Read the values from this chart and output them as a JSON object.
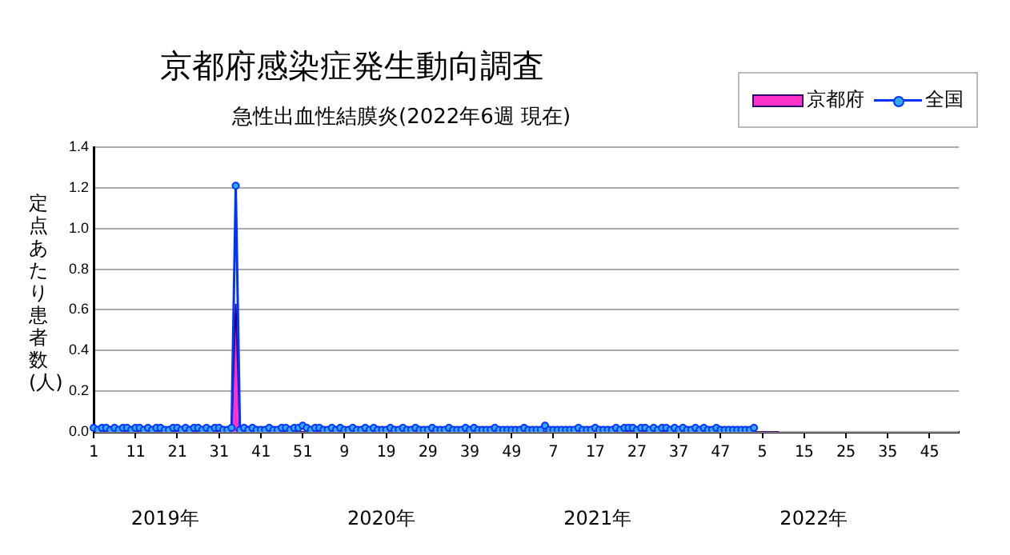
{
  "chart_data": {
    "type": "line",
    "title": "京都府感染症発生動向調査",
    "subtitle": "急性出血性結膜炎(2022年6週 現在)",
    "ylabel": "定点あたり患者数(人)",
    "annotations": [
      "2019年",
      "2020年",
      "2021年",
      "2022年"
    ],
    "categories": [
      "1",
      null,
      null,
      null,
      null,
      null,
      null,
      null,
      null,
      null,
      "11",
      null,
      null,
      null,
      null,
      null,
      null,
      null,
      null,
      null,
      "21",
      null,
      null,
      null,
      null,
      null,
      null,
      null,
      null,
      null,
      "31",
      null,
      null,
      null,
      null,
      null,
      null,
      null,
      null,
      null,
      "41",
      null,
      null,
      null,
      null,
      null,
      null,
      null,
      null,
      null,
      "51",
      null,
      null,
      null,
      null,
      null,
      null,
      null,
      null,
      null,
      "9",
      null,
      null,
      null,
      null,
      null,
      null,
      null,
      null,
      null,
      "19",
      null,
      null,
      null,
      null,
      null,
      null,
      null,
      null,
      null,
      "29",
      null,
      null,
      null,
      null,
      null,
      null,
      null,
      null,
      null,
      "39",
      null,
      null,
      null,
      null,
      null,
      null,
      null,
      null,
      null,
      "49",
      null,
      null,
      null,
      null,
      null,
      null,
      null,
      null,
      null,
      "7",
      null,
      null,
      null,
      null,
      null,
      null,
      null,
      null,
      null,
      "17",
      null,
      null,
      null,
      null,
      null,
      null,
      null,
      null,
      null,
      "27",
      null,
      null,
      null,
      null,
      null,
      null,
      null,
      null,
      null,
      "37",
      null,
      null,
      null,
      null,
      null,
      null,
      null,
      null,
      null,
      "47",
      null,
      null,
      null,
      null,
      null,
      null,
      null,
      null,
      null,
      "5",
      null,
      null,
      null,
      null,
      null,
      null,
      null,
      null,
      null,
      "15",
      null,
      null,
      null,
      null,
      null,
      null,
      null,
      null,
      null,
      "25",
      null,
      null,
      null,
      null,
      null,
      null,
      null,
      null,
      null,
      "35",
      null,
      null,
      null,
      null,
      null,
      null,
      null,
      null,
      null,
      "45",
      null,
      null,
      null,
      null,
      null,
      null,
      null
    ],
    "series": [
      {
        "name": "京都府",
        "type": "area",
        "color": "#ff33cc",
        "marker": "none",
        "values": [
          0,
          0,
          0,
          0,
          0,
          0,
          0,
          0,
          0,
          0,
          0,
          0,
          0,
          0,
          0,
          0,
          0,
          0,
          0,
          0,
          0,
          0,
          0,
          0,
          0,
          0,
          0,
          0,
          0,
          0,
          0,
          0,
          0,
          0,
          0.63,
          0,
          0,
          0,
          0,
          0,
          0,
          0,
          0,
          0,
          0,
          0,
          0,
          0,
          0,
          0,
          0,
          0,
          0,
          0,
          0,
          0,
          0,
          0,
          0,
          0,
          0,
          0,
          0,
          0,
          0,
          0,
          0,
          0,
          0,
          0,
          0,
          0,
          0,
          0,
          0,
          0,
          0,
          0,
          0,
          0,
          0,
          0,
          0,
          0,
          0,
          0,
          0,
          0,
          0,
          0,
          0,
          0,
          0,
          0,
          0,
          0,
          0,
          0,
          0,
          0,
          0,
          0,
          0,
          0,
          0,
          0,
          0,
          0,
          0,
          0,
          0,
          0,
          0,
          0,
          0,
          0,
          0,
          0,
          0,
          0,
          0,
          0,
          0,
          0,
          0,
          0,
          0,
          0,
          0,
          0,
          0,
          0,
          0,
          0,
          0,
          0,
          0,
          0,
          0,
          0,
          0,
          0,
          0,
          0,
          0,
          0,
          0,
          0,
          0,
          0,
          0,
          0,
          0,
          0,
          0,
          0,
          0,
          0,
          0,
          0,
          0,
          0,
          0,
          0,
          0,
          null,
          null,
          null,
          null,
          null,
          null,
          null,
          null,
          null,
          null,
          null,
          null,
          null,
          null,
          null,
          null,
          null,
          null,
          null,
          null,
          null,
          null,
          null,
          null,
          null,
          null,
          null,
          null,
          null,
          null,
          null,
          null,
          null,
          null,
          null,
          null,
          null,
          null,
          null,
          null,
          null,
          null,
          null
        ]
      },
      {
        "name": "全国",
        "type": "line",
        "color": "#0033ff",
        "marker": "circle",
        "values": [
          0.02,
          0.01,
          0.02,
          0.02,
          0.01,
          0.02,
          0.01,
          0.02,
          0.02,
          0.01,
          0.02,
          0.02,
          0.01,
          0.02,
          0.01,
          0.02,
          0.02,
          0.01,
          0.01,
          0.02,
          0.02,
          0.01,
          0.02,
          0.01,
          0.02,
          0.02,
          0.01,
          0.02,
          0.01,
          0.02,
          0.02,
          0.01,
          0.01,
          0.02,
          1.21,
          0.01,
          0.02,
          0.01,
          0.02,
          0.01,
          0.01,
          0.01,
          0.02,
          0.01,
          0.01,
          0.02,
          0.02,
          0.01,
          0.02,
          0.02,
          0.03,
          0.02,
          0.01,
          0.02,
          0.02,
          0.01,
          0.01,
          0.02,
          0.01,
          0.02,
          0.01,
          0.01,
          0.02,
          0.01,
          0.01,
          0.02,
          0.01,
          0.02,
          0.01,
          0.01,
          0.01,
          0.02,
          0.01,
          0.01,
          0.02,
          0.01,
          0.01,
          0.02,
          0.01,
          0.01,
          0.01,
          0.02,
          0.01,
          0.01,
          0.01,
          0.02,
          0.01,
          0.01,
          0.01,
          0.02,
          0.01,
          0.02,
          0.01,
          0.01,
          0.01,
          0.01,
          0.02,
          0.01,
          0.01,
          0.01,
          0.01,
          0.01,
          0.01,
          0.02,
          0.01,
          0.01,
          0.01,
          0.01,
          0.03,
          0.01,
          0.01,
          0.01,
          0.01,
          0.01,
          0.01,
          0.01,
          0.02,
          0.01,
          0.01,
          0.01,
          0.02,
          0.01,
          0.01,
          0.01,
          0.01,
          0.02,
          0.01,
          0.02,
          0.02,
          0.02,
          0.01,
          0.02,
          0.02,
          0.01,
          0.02,
          0.01,
          0.02,
          0.02,
          0.01,
          0.02,
          0.01,
          0.02,
          0.01,
          0.01,
          0.02,
          0.01,
          0.02,
          0.01,
          0.01,
          0.02,
          0.01,
          0.01,
          0.01,
          0.01,
          0.01,
          0.01,
          0.01,
          0.01,
          0.02,
          null,
          null,
          null,
          null,
          null,
          null,
          null,
          null,
          null,
          null,
          null,
          null,
          null,
          null,
          null,
          null,
          null,
          null,
          null,
          null,
          null,
          null,
          null,
          null,
          null,
          null,
          null,
          null,
          null,
          null,
          null,
          null,
          null,
          null,
          null,
          null,
          null,
          null,
          null,
          null,
          null,
          null,
          null,
          null,
          null,
          null,
          null,
          null,
          null
        ]
      }
    ],
    "ylim": [
      0,
      1.4
    ],
    "yticks": [
      {
        "value": 0,
        "label": "0.0"
      },
      {
        "value": 0.2,
        "label": "0.2"
      },
      {
        "value": 0.4,
        "label": "0.4"
      },
      {
        "value": 0.6,
        "label": "0.6"
      },
      {
        "value": 0.8,
        "label": "0.8"
      },
      {
        "value": 1,
        "label": "1.0"
      },
      {
        "value": 1.2,
        "label": "1.2"
      },
      {
        "value": 1.4,
        "label": "1.4"
      }
    ],
    "grid": "y",
    "legend": "top right",
    "line_style": "solid"
  }
}
